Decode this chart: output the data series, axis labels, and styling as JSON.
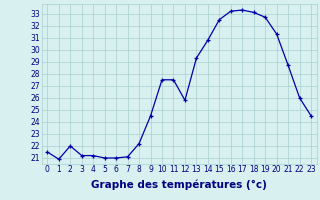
{
  "hours": [
    0,
    1,
    2,
    3,
    4,
    5,
    6,
    7,
    8,
    9,
    10,
    11,
    12,
    13,
    14,
    15,
    16,
    17,
    18,
    19,
    20,
    21,
    22,
    23
  ],
  "temperatures": [
    21.5,
    20.9,
    22.0,
    21.2,
    21.2,
    21.0,
    21.0,
    21.1,
    22.2,
    24.5,
    27.5,
    27.5,
    25.8,
    29.3,
    30.8,
    32.5,
    33.2,
    33.3,
    33.1,
    32.7,
    31.3,
    28.7,
    26.0,
    24.5
  ],
  "line_color": "#0000aa",
  "marker": "+",
  "bg_color": "#d8f0f0",
  "grid_color": "#a8cece",
  "ylim": [
    20.5,
    33.8
  ],
  "yticks": [
    21,
    22,
    23,
    24,
    25,
    26,
    27,
    28,
    29,
    30,
    31,
    32,
    33
  ],
  "tick_color": "#000080",
  "title": "Graphe des températures (°c)",
  "title_color": "#000080",
  "title_fontsize": 7.5,
  "tick_fontsize": 5.5
}
